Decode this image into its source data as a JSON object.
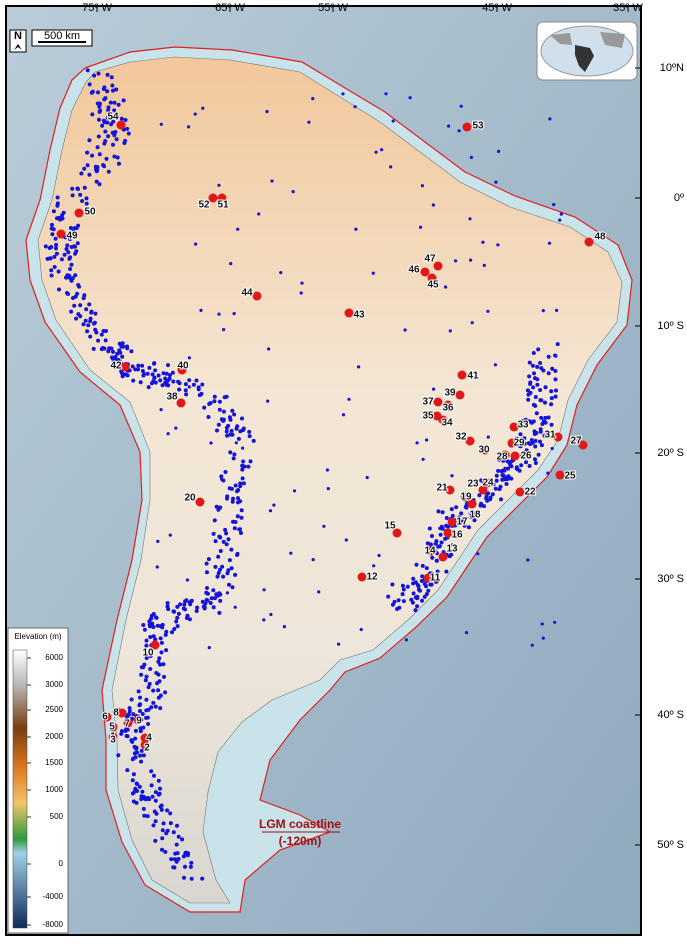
{
  "header": {
    "north": "N",
    "scale": "500 km"
  },
  "lon_labels": [
    "75º W",
    "65º W",
    "55º W",
    "45º W",
    "35º W"
  ],
  "lat_labels": [
    "10ºN",
    "0º",
    "10º S",
    "20º S",
    "30º S",
    "40º S",
    "50º S"
  ],
  "sites": [
    "1",
    "2",
    "3",
    "4",
    "5",
    "6",
    "7",
    "8",
    "9",
    "10",
    "11",
    "12",
    "13",
    "14",
    "15",
    "16",
    "17",
    "18",
    "19",
    "20",
    "21",
    "22",
    "23",
    "24",
    "25",
    "26",
    "27",
    "28",
    "29",
    "30",
    "31",
    "32",
    "33",
    "34",
    "35",
    "36",
    "37",
    "38",
    "39",
    "40",
    "41",
    "42",
    "43",
    "44",
    "45",
    "46",
    "47",
    "48",
    "49",
    "50",
    "51",
    "52",
    "53",
    "54"
  ],
  "legend": {
    "title": "Elevation (m)",
    "ticks": [
      6000,
      3000,
      2500,
      2000,
      1500,
      1000,
      500,
      0,
      -4000,
      -8000
    ]
  },
  "annotation": {
    "line1": "LGM coastline",
    "line2": "(-120m)"
  }
}
